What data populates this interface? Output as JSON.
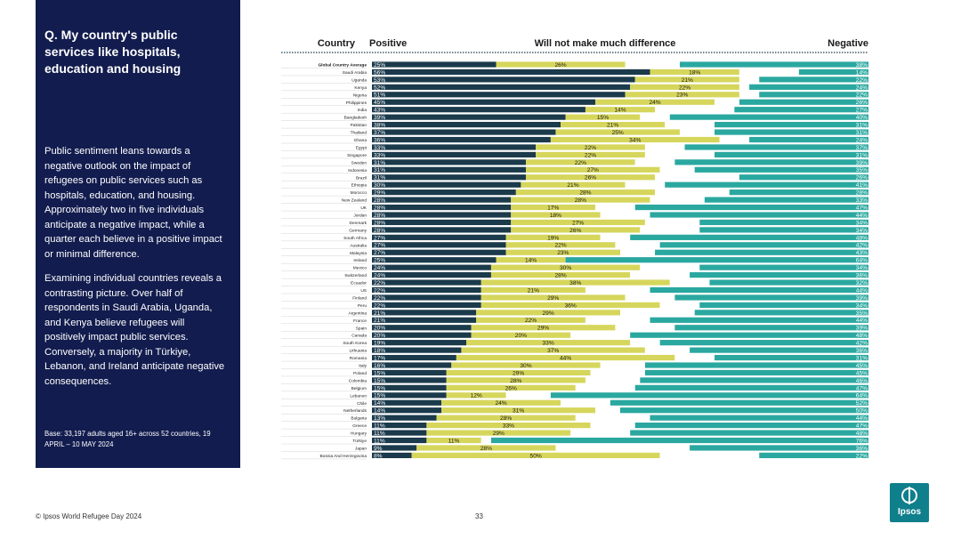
{
  "panel": {
    "question": "Q. My country's public services like hospitals, education and housing",
    "paragraph1": "Public sentiment leans towards a negative outlook on the impact of refugees on public services such as hospitals, education, and housing. Approximately two in five individuals anticipate a negative impact, while a quarter each believe in a positive impact or minimal difference.",
    "paragraph2": "Examining individual countries reveals a contrasting picture. Over half of respondents in Saudi Arabia, Uganda, and Kenya believe refugees will positively impact public services. Conversely, a majority in Türkiye, Lebanon, and Ireland anticipate negative consequences.",
    "base": "Base: 33,197 adults aged 16+ across 52 countries, 19 APRIL – 10 MAY 2024"
  },
  "footer": {
    "source": "© Ipsos World Refugee Day 2024",
    "page": "33"
  },
  "logo": {
    "text": "Ipsos"
  },
  "colors": {
    "positive": "#1b3a4b",
    "neutral": "#d6d65c",
    "dontknow": "#ffffff",
    "negative": "#2aa8a0",
    "panel": "#121c4e"
  },
  "chart_data": {
    "type": "bar",
    "stacked": true,
    "orientation": "horizontal",
    "headers": {
      "country": "Country",
      "positive": "Positive",
      "neutral": "Will not make much difference",
      "negative": "Negative"
    },
    "categories": [
      "Global Country Average",
      "Saudi Arabia",
      "Uganda",
      "Kenya",
      "Nigeria",
      "Philippines",
      "India",
      "Bangladesh",
      "Pakistan",
      "Thailand",
      "Ghana",
      "Egypt",
      "Singapore",
      "Sweden",
      "Indonesia",
      "Brazil",
      "Ethiopia",
      "Morocco",
      "New Zealand",
      "UK",
      "Jordan",
      "Denmark",
      "Germany",
      "South Africa",
      "Australia",
      "Malaysia",
      "Ireland",
      "Mexico",
      "Switzerland",
      "Ecuador",
      "US",
      "Finland",
      "Peru",
      "Argentina",
      "France",
      "Spain",
      "Canada",
      "South Korea",
      "Lithuania",
      "Romania",
      "Italy",
      "Poland",
      "Colombia",
      "Belgium",
      "Lebanon",
      "Chile",
      "Netherlands",
      "Bulgaria",
      "Greece",
      "Hungary",
      "Türkiye",
      "Japan",
      "Bosnia And Herzegovina"
    ],
    "series": [
      {
        "name": "Positive",
        "values": [
          25,
          56,
          53,
          52,
          51,
          45,
          43,
          39,
          38,
          37,
          36,
          33,
          33,
          31,
          31,
          31,
          30,
          29,
          28,
          28,
          28,
          28,
          28,
          27,
          27,
          27,
          25,
          24,
          24,
          22,
          22,
          22,
          22,
          21,
          21,
          20,
          20,
          19,
          18,
          17,
          16,
          15,
          15,
          15,
          15,
          14,
          14,
          13,
          11,
          11,
          11,
          9,
          8
        ]
      },
      {
        "name": "Will not make much difference",
        "values": [
          26,
          18,
          21,
          22,
          23,
          24,
          14,
          15,
          21,
          25,
          34,
          22,
          22,
          22,
          27,
          26,
          21,
          28,
          28,
          17,
          18,
          27,
          26,
          19,
          22,
          23,
          14,
          30,
          28,
          38,
          21,
          29,
          36,
          29,
          22,
          29,
          20,
          33,
          37,
          44,
          30,
          29,
          28,
          26,
          12,
          24,
          31,
          28,
          33,
          29,
          11,
          28,
          50
        ]
      },
      {
        "name": "Negative",
        "values": [
          38,
          14,
          22,
          24,
          22,
          26,
          27,
          40,
          31,
          31,
          24,
          37,
          31,
          39,
          35,
          26,
          41,
          28,
          33,
          47,
          44,
          34,
          34,
          48,
          42,
          43,
          64,
          34,
          36,
          32,
          44,
          39,
          34,
          35,
          44,
          39,
          48,
          42,
          36,
          31,
          45,
          45,
          46,
          47,
          64,
          52,
          50,
          44,
          47,
          48,
          76,
          36,
          22
        ]
      }
    ]
  }
}
